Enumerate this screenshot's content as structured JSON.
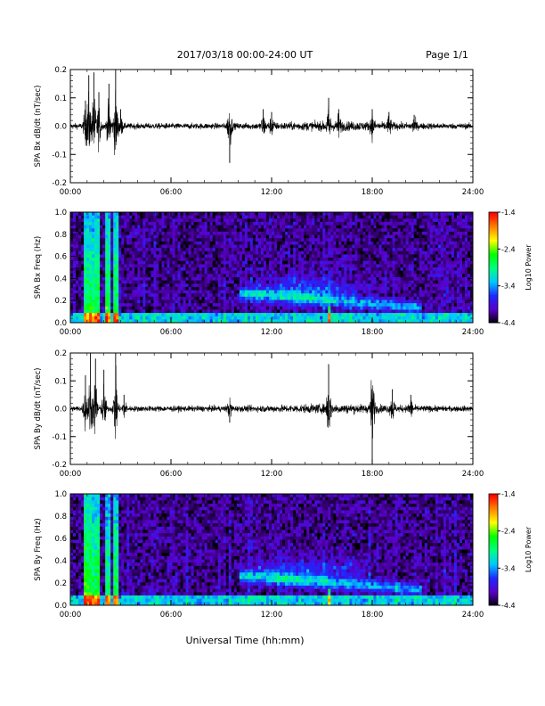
{
  "header": {
    "title": "2017/03/18  00:00-24:00 UT",
    "page": "Page 1/1"
  },
  "footer": {
    "xlabel": "Universal Time (hh:mm)"
  },
  "chart_data": [
    {
      "type": "line",
      "ylabel": "SPA Bx dB/dt (nT/sec)",
      "ylim": [
        -0.2,
        0.2
      ],
      "yticks": [
        "0.2",
        "0.1",
        "0.0",
        "-0.1",
        "-0.2"
      ],
      "xlim": [
        0,
        24
      ],
      "xticks": [
        "00:00",
        "06:00",
        "12:00",
        "18:00",
        "24:00"
      ],
      "activity_hours": [
        [
          0.9,
          0.09
        ],
        [
          1.1,
          0.18
        ],
        [
          1.4,
          0.19
        ],
        [
          1.7,
          0.12
        ],
        [
          2.3,
          0.15
        ],
        [
          2.7,
          0.2
        ],
        [
          3.0,
          0.06
        ],
        [
          9.5,
          -0.13
        ],
        [
          11.5,
          0.06
        ],
        [
          12.0,
          0.05
        ],
        [
          15.4,
          0.1
        ],
        [
          16.0,
          0.06
        ],
        [
          18.0,
          0.06
        ],
        [
          19.0,
          0.05
        ],
        [
          20.5,
          0.04
        ]
      ]
    },
    {
      "type": "heatmap",
      "ylabel": "SPA Bx Freq (Hz)",
      "ylim": [
        0.0,
        1.0
      ],
      "yticks": [
        "1.0",
        "0.8",
        "0.6",
        "0.4",
        "0.2",
        "0.0"
      ],
      "xlim": [
        0,
        24
      ],
      "xticks": [
        "00:00",
        "06:00",
        "12:00",
        "18:00",
        "24:00"
      ],
      "colorbar": {
        "label": "Log10 Power",
        "ticks": [
          "-1.4",
          "-2.4",
          "-3.4",
          "-4.4"
        ],
        "range": [
          -4.4,
          -1.4
        ],
        "colors": [
          "#000000",
          "#5a00c8",
          "#1e28ff",
          "#00c8ff",
          "#00ff80",
          "#00ff00",
          "#ffff00",
          "#ff8000",
          "#ff0000"
        ]
      }
    },
    {
      "type": "line",
      "ylabel": "SPA By dB/dt (nT/sec)",
      "ylim": [
        -0.2,
        0.2
      ],
      "yticks": [
        "0.2",
        "0.1",
        "0.0",
        "-0.1",
        "-0.2"
      ],
      "xlim": [
        0,
        24
      ],
      "xticks": [
        "00:00",
        "06:00",
        "12:00",
        "18:00",
        "24:00"
      ],
      "activity_hours": [
        [
          0.9,
          0.12
        ],
        [
          1.2,
          0.2
        ],
        [
          1.5,
          0.18
        ],
        [
          2.0,
          0.14
        ],
        [
          2.7,
          0.2
        ],
        [
          3.2,
          0.05
        ],
        [
          9.5,
          -0.05
        ],
        [
          15.4,
          0.16
        ],
        [
          18.0,
          -0.19
        ],
        [
          19.2,
          0.07
        ],
        [
          20.3,
          0.05
        ]
      ]
    },
    {
      "type": "heatmap",
      "ylabel": "SPA By Freq (Hz)",
      "ylim": [
        0.0,
        1.0
      ],
      "yticks": [
        "1.0",
        "0.8",
        "0.6",
        "0.4",
        "0.2",
        "0.0"
      ],
      "xlim": [
        0,
        24
      ],
      "xticks": [
        "00:00",
        "06:00",
        "12:00",
        "18:00",
        "24:00"
      ],
      "colorbar": {
        "label": "Log10 Power",
        "ticks": [
          "-1.4",
          "-2.4",
          "-3.4",
          "-4.4"
        ],
        "range": [
          -4.4,
          -1.4
        ],
        "colors": [
          "#000000",
          "#5a00c8",
          "#1e28ff",
          "#00c8ff",
          "#00ff80",
          "#00ff00",
          "#ffff00",
          "#ff8000",
          "#ff0000"
        ]
      }
    }
  ]
}
